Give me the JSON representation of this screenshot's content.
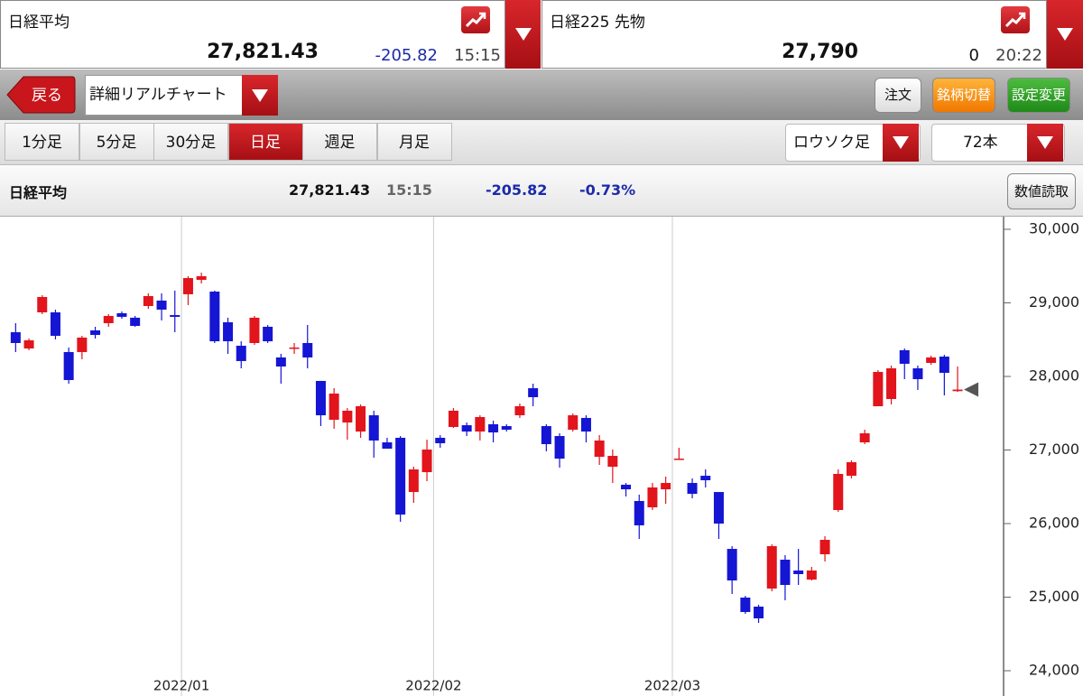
{
  "quotes": [
    {
      "name": "日経平均",
      "price": "27,821.43",
      "change": "-205.82",
      "time": "15:15"
    },
    {
      "name": "日経225 先物",
      "price": "27,790",
      "change": "0",
      "time": "20:22"
    }
  ],
  "toolbar": {
    "back": "戻る",
    "view": "詳細リアルチャート",
    "buttons": [
      "注文",
      "銘柄切替",
      "設定変更"
    ]
  },
  "periods": {
    "tabs": [
      "1分足",
      "5分足",
      "30分足",
      "日足",
      "週足",
      "月足"
    ],
    "selected": 3
  },
  "chart_style": "ロウソク足",
  "bar_count": "72本",
  "summary": {
    "name": "日経平均",
    "price": "27,821.43",
    "time": "15:15",
    "change": "-205.82",
    "change_pct": "-0.73%",
    "button": "数値読取"
  },
  "chart_data": {
    "type": "candlestick",
    "categories": [
      null,
      null,
      null,
      null,
      null,
      null,
      null,
      null,
      null,
      null,
      null,
      null,
      null,
      "2022/01",
      null,
      null,
      null,
      null,
      null,
      null,
      null,
      null,
      null,
      null,
      null,
      null,
      null,
      null,
      null,
      null,
      null,
      null,
      "2022/02",
      null,
      null,
      null,
      null,
      null,
      null,
      null,
      null,
      null,
      null,
      null,
      null,
      null,
      null,
      null,
      null,
      null,
      "2022/03",
      null,
      null,
      null,
      null,
      null,
      null,
      null,
      null,
      null,
      null,
      null,
      null,
      null,
      null,
      null,
      null,
      null,
      null,
      null,
      null,
      null
    ],
    "open": [
      28601,
      28380,
      28871,
      28871,
      28331,
      28331,
      28626,
      28724,
      28859,
      28798,
      28957,
      29031,
      28834,
      29117,
      29313,
      29153,
      28736,
      28417,
      28454,
      28675,
      28258,
      28380,
      28454,
      27939,
      27411,
      27374,
      27251,
      27472,
      27104,
      27166,
      26429,
      26699,
      27166,
      27313,
      27337,
      27251,
      27350,
      27325,
      27472,
      27840,
      27325,
      27190,
      27276,
      27436,
      26908,
      26773,
      26528,
      26307,
      26221,
      26466,
      26871,
      26552,
      26650,
      26429,
      25656,
      24994,
      24871,
      25117,
      25509,
      25362,
      25239,
      25583,
      26184,
      26650,
      27104,
      27595,
      27693,
      28356,
      28110,
      28184,
      28270,
      27800
    ],
    "high": [
      28724,
      28515,
      29104,
      28908,
      28393,
      28552,
      28675,
      28847,
      28883,
      28822,
      29129,
      29129,
      29166,
      29362,
      29411,
      29166,
      28798,
      28478,
      28822,
      28699,
      28307,
      28454,
      28699,
      27939,
      27840,
      27570,
      27619,
      27534,
      27166,
      27190,
      26773,
      27141,
      27202,
      27570,
      27374,
      27472,
      27399,
      27350,
      27632,
      27902,
      27350,
      27227,
      27497,
      27472,
      27202,
      27006,
      26552,
      26393,
      26552,
      26638,
      27031,
      26614,
      26736,
      26429,
      25693,
      25018,
      24896,
      25718,
      25570,
      25656,
      25411,
      25828,
      26736,
      26859,
      27276,
      28086,
      28147,
      28380,
      28147,
      28282,
      28294,
      28135
    ],
    "low": [
      28331,
      28356,
      28847,
      28503,
      27902,
      28233,
      28515,
      28675,
      28785,
      28675,
      28920,
      28761,
      28601,
      28969,
      29264,
      28454,
      28307,
      28110,
      28429,
      28454,
      27902,
      28307,
      28110,
      27325,
      27288,
      27141,
      27166,
      26896,
      27018,
      26025,
      26282,
      26577,
      27031,
      27300,
      27190,
      27129,
      27104,
      27251,
      27436,
      27595,
      26982,
      26761,
      27251,
      27104,
      26797,
      26552,
      26368,
      25791,
      26184,
      26270,
      26871,
      26344,
      26491,
      25791,
      25043,
      24773,
      24650,
      25080,
      24957,
      25166,
      25227,
      25485,
      26160,
      26614,
      27080,
      27595,
      27619,
      27963,
      27816,
      28159,
      27742,
      27790
    ],
    "close": [
      28454,
      28491,
      29080,
      28552,
      27951,
      28528,
      28564,
      28822,
      28810,
      28687,
      29092,
      28908,
      28810,
      29337,
      29362,
      28478,
      28478,
      28209,
      28798,
      28478,
      28135,
      28393,
      28258,
      27472,
      27767,
      27534,
      27595,
      27129,
      27018,
      26123,
      26736,
      27006,
      27092,
      27534,
      27251,
      27448,
      27239,
      27276,
      27595,
      27718,
      27080,
      26883,
      27472,
      27251,
      27129,
      26920,
      26466,
      25976,
      26491,
      26552,
      26883,
      26405,
      26589,
      26000,
      25227,
      24798,
      24712,
      25693,
      25166,
      25313,
      25362,
      25779,
      26675,
      26834,
      27227,
      28061,
      28110,
      28172,
      27963,
      28258,
      28049,
      27821.43
    ],
    "up_color": "#e2141c",
    "down_color": "#1515d4",
    "ylim": [
      24000,
      30000
    ],
    "yticks": [
      {
        "value": 24000,
        "label": "24,000"
      },
      {
        "value": 25000,
        "label": "25,000"
      },
      {
        "value": 26000,
        "label": "26,000"
      },
      {
        "value": 27000,
        "label": "27,000"
      },
      {
        "value": 28000,
        "label": "28,000"
      },
      {
        "value": 29000,
        "label": "29,000"
      },
      {
        "value": 30000,
        "label": "30,000"
      }
    ],
    "grid": true
  }
}
